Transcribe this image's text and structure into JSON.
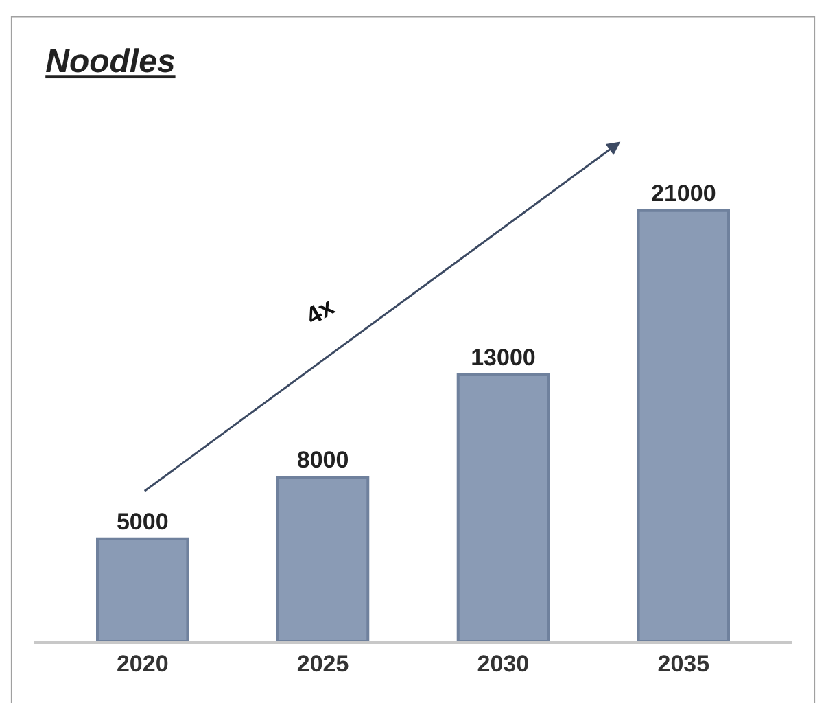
{
  "chart_data": {
    "type": "bar",
    "title": "Noodles",
    "categories": [
      "2020",
      "2025",
      "2030",
      "2035"
    ],
    "values": [
      5000,
      8000,
      13000,
      21000
    ],
    "color": "#8a9bb5",
    "data_labels": true,
    "annotations": [
      "4x"
    ]
  }
}
